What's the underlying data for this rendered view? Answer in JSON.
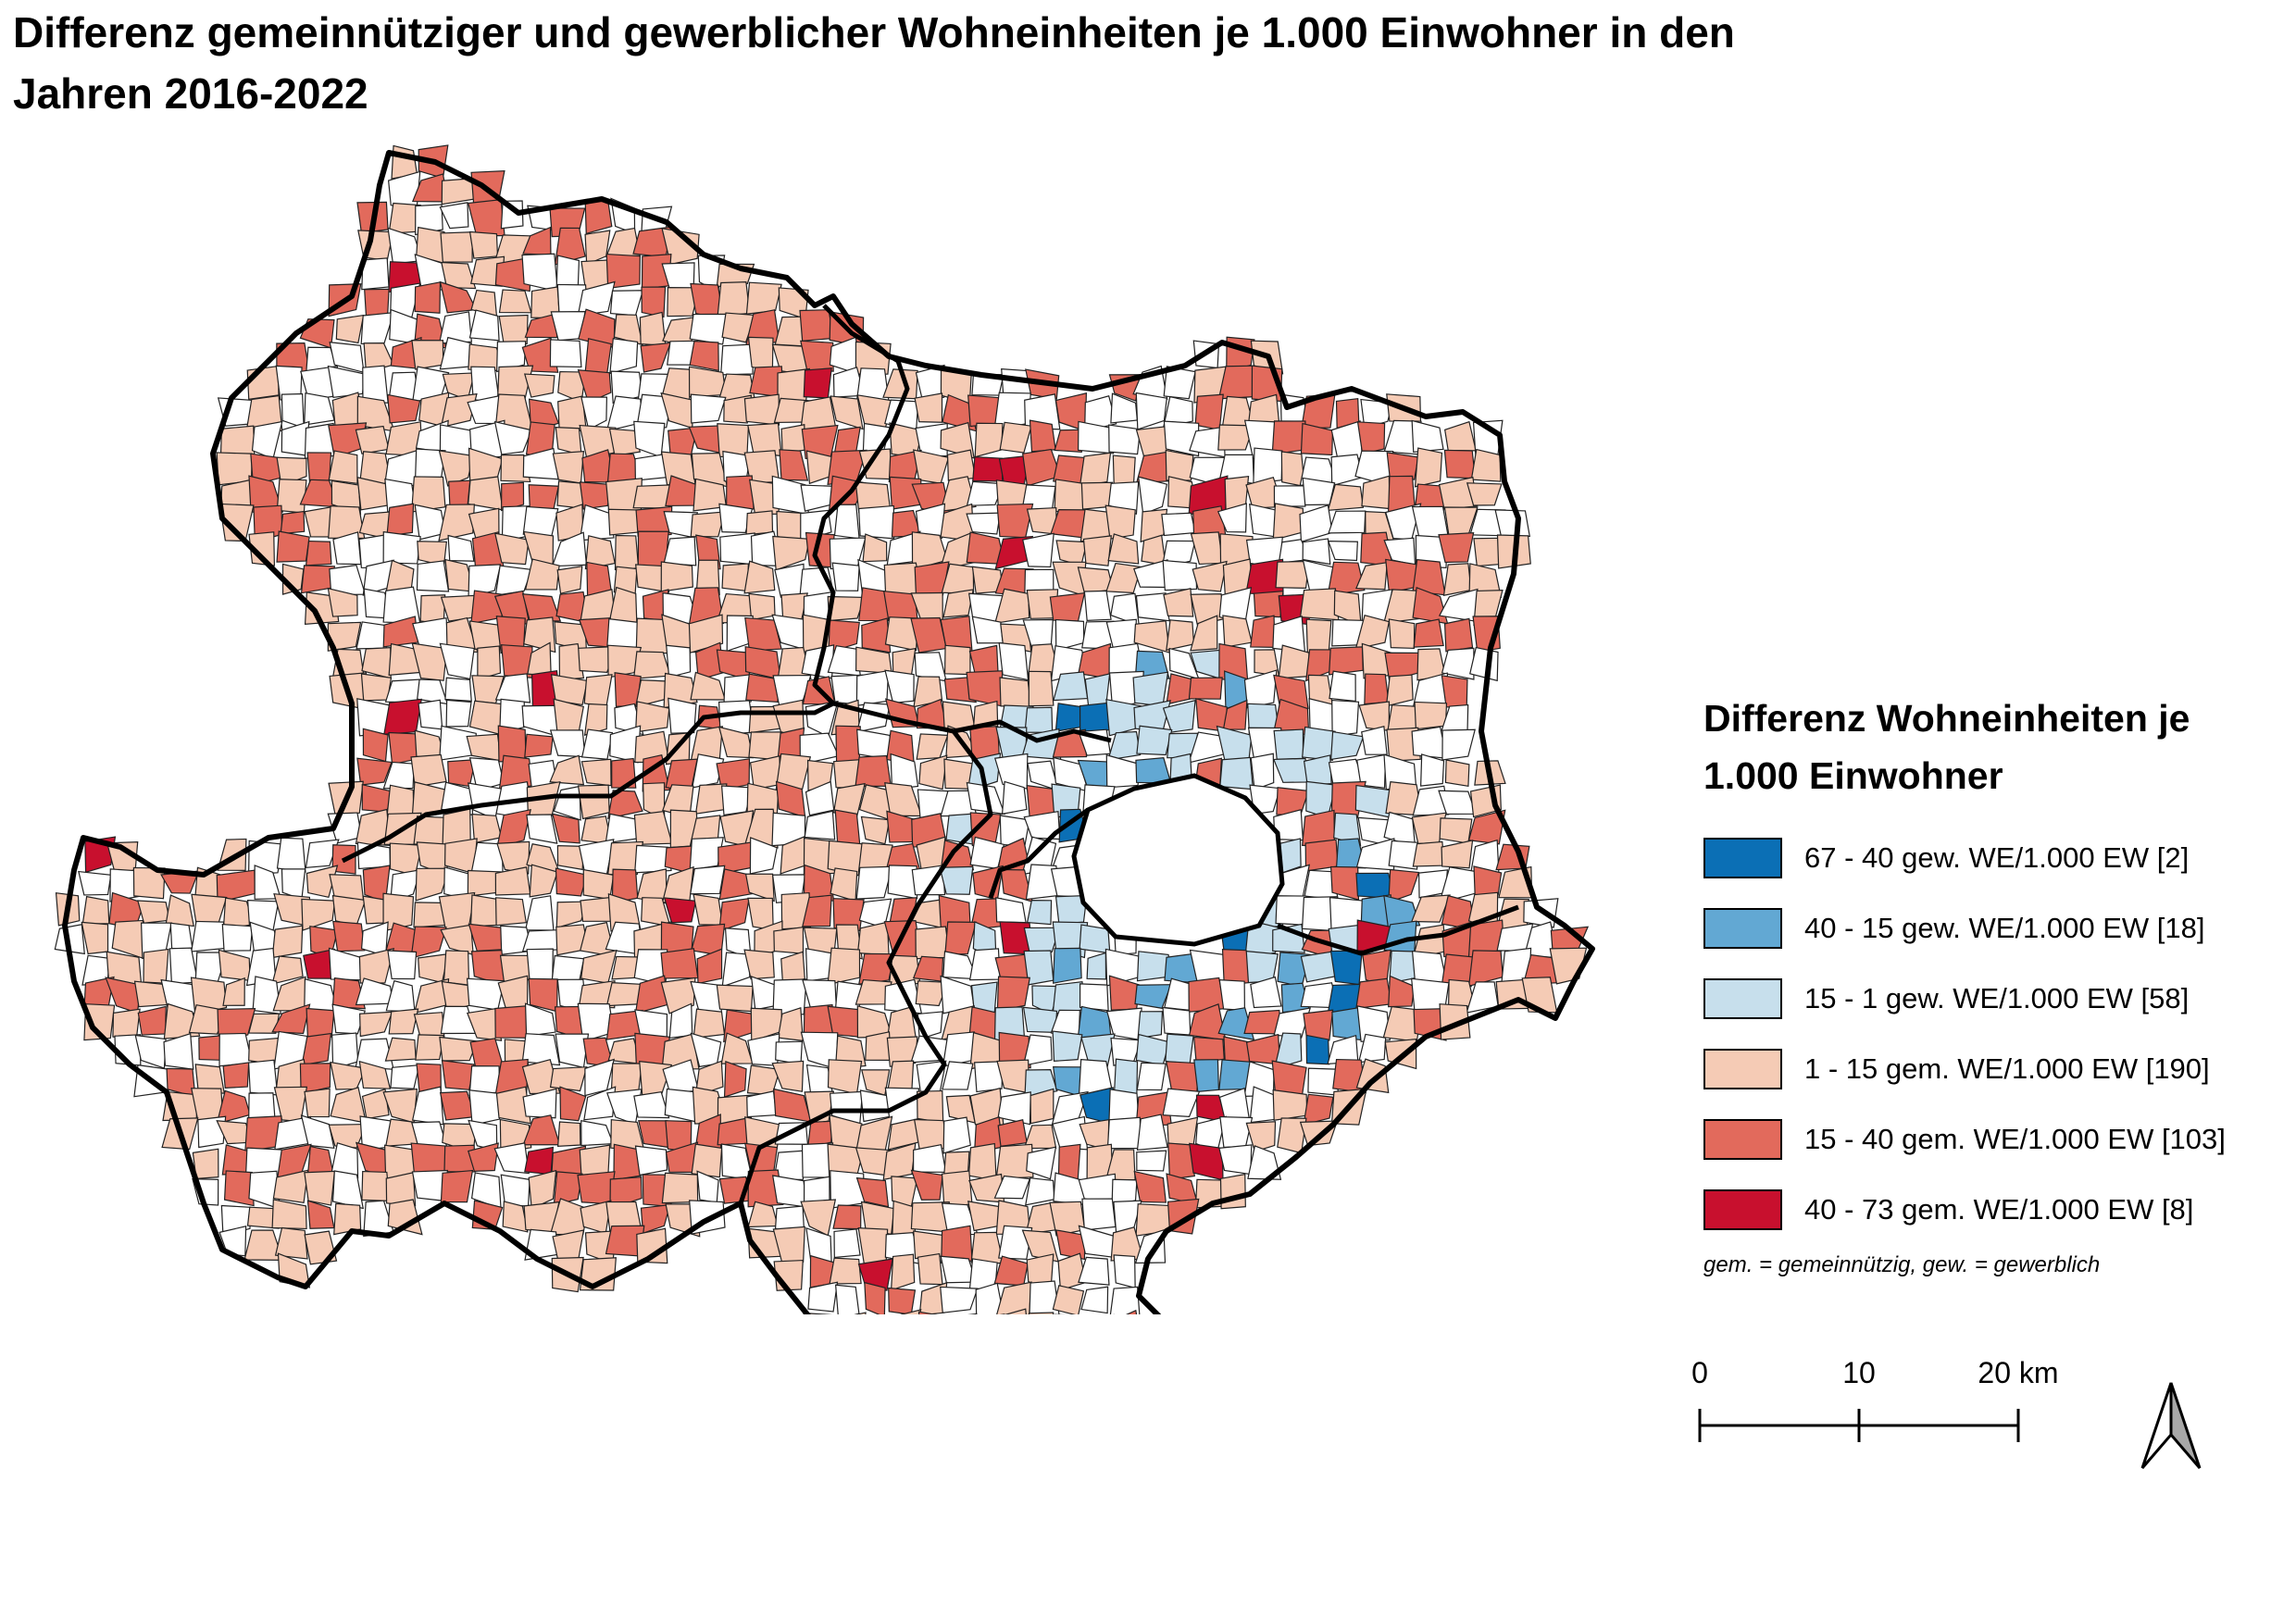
{
  "title_line1": "Differenz gemeinnütziger und gewerblicher Wohneinheiten je 1.000 Einwohner in den",
  "title_line2": "Jahren 2016-2022",
  "legend": {
    "title_line1": "Differenz Wohneinheiten je",
    "title_line2": "1.000 Einwohner",
    "classes": [
      {
        "label": "67 - 40 gew. WE/1.000 EW [2]",
        "color": "#0b6fb5",
        "count": 2
      },
      {
        "label": "40 - 15 gew. WE/1.000 EW [18]",
        "color": "#62a8d3",
        "count": 18
      },
      {
        "label": "15 - 1 gew. WE/1.000 EW [58]",
        "color": "#c7dfec",
        "count": 58
      },
      {
        "label": "1 - 15 gem. WE/1.000 EW [190]",
        "color": "#f5cbb5",
        "count": 190
      },
      {
        "label": "15 - 40 gem. WE/1.000 EW [103]",
        "color": "#e26a5c",
        "count": 103
      },
      {
        "label": "40 - 73 gem. WE/1.000 EW [8]",
        "color": "#c8102e",
        "count": 8
      }
    ],
    "footnote": "gem. = gemeinnützig, gew. = gewerblich"
  },
  "scale": {
    "tick0": "0",
    "tick1": "10",
    "tick2": "20 km"
  },
  "north_arrow_icon": "north-arrow-icon"
}
